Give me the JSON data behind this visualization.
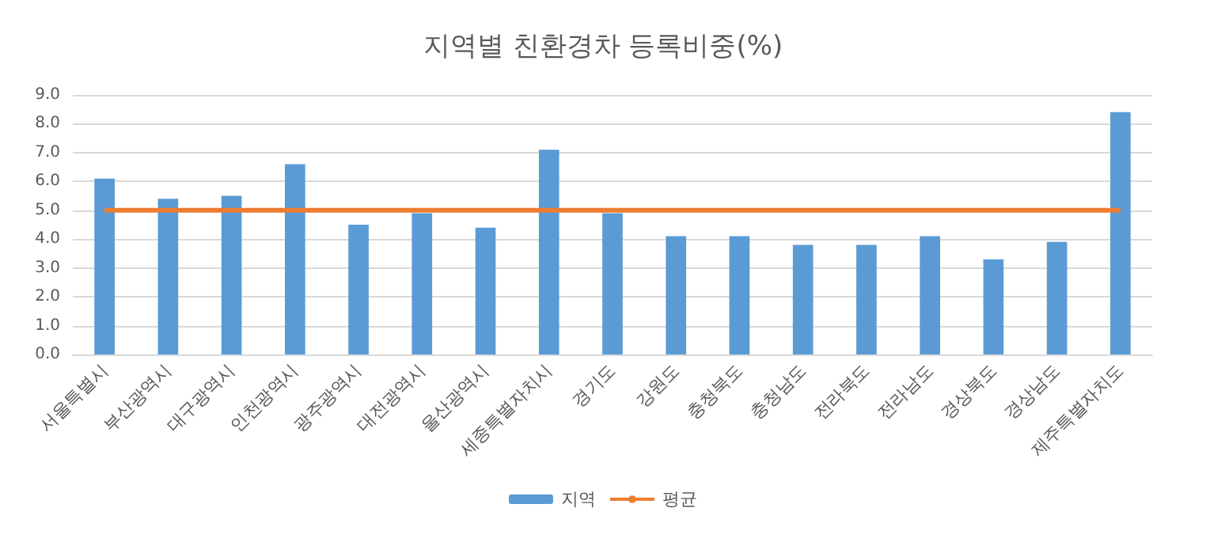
{
  "chart_data": {
    "type": "bar",
    "title": "지역별 친환경차 등록비중(%)",
    "categories": [
      "서울특별시",
      "부산광역시",
      "대구광역시",
      "인천광역시",
      "광주광역시",
      "대전광역시",
      "울산광역시",
      "세종특별자치시",
      "경기도",
      "강원도",
      "충청북도",
      "충청남도",
      "전라북도",
      "전라남도",
      "경상북도",
      "경상남도",
      "제주특별자치도"
    ],
    "series": [
      {
        "name": "지역",
        "color": "#5b9bd5",
        "values": [
          6.1,
          5.4,
          5.5,
          6.6,
          4.5,
          4.9,
          4.4,
          7.1,
          4.9,
          4.1,
          4.1,
          3.8,
          3.8,
          4.1,
          3.3,
          3.9,
          8.4
        ]
      },
      {
        "name": "평균",
        "type": "line",
        "color": "#ed7d31",
        "values": [
          5.0,
          5.0,
          5.0,
          5.0,
          5.0,
          5.0,
          5.0,
          5.0,
          5.0,
          5.0,
          5.0,
          5.0,
          5.0,
          5.0,
          5.0,
          5.0,
          5.0
        ]
      }
    ],
    "ylim": [
      0,
      9
    ],
    "yticks": [
      {
        "value": 0,
        "label": "0.0"
      },
      {
        "value": 1,
        "label": "1.0"
      },
      {
        "value": 2,
        "label": "2.0"
      },
      {
        "value": 3,
        "label": "3.0"
      },
      {
        "value": 4,
        "label": "4.0"
      },
      {
        "value": 5,
        "label": "5.0"
      },
      {
        "value": 6,
        "label": "6.0"
      },
      {
        "value": 7,
        "label": "7.0"
      },
      {
        "value": 8,
        "label": "8.0"
      },
      {
        "value": 9,
        "label": "9.0"
      }
    ],
    "grid": "y",
    "legend": "bottom",
    "marker": "none"
  }
}
